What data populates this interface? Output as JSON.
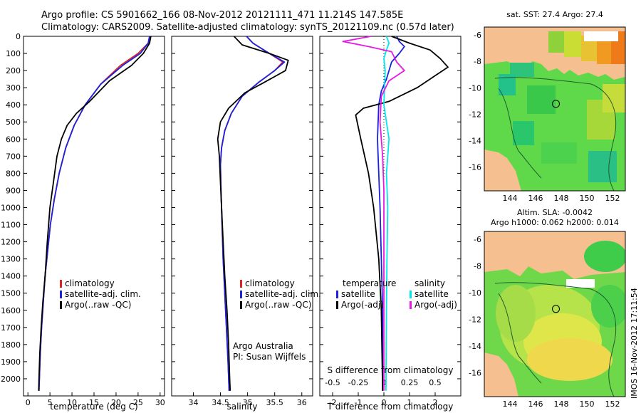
{
  "header": {
    "line1": "Argo profile: CS 5901662_166 08-Nov-2012 20121111_471 11.214S 147.585E",
    "line2": "Climatology: CARS2009. Satellite-adjusted climatology: synTS_20121109.nc (0.57d later)"
  },
  "colors": {
    "clim": "#dd2222",
    "sat": "#1a22dd",
    "argo": "#000000",
    "s_sat": "#00e6ee",
    "s_argo": "#e61ae6",
    "land": "#f5bf90",
    "frame": "#000000"
  },
  "chart_data": [
    {
      "type": "line",
      "id": "temperature",
      "xlabel": "temperature (deg C)",
      "ylabel": "",
      "xlim": [
        -1,
        31
      ],
      "ylim": [
        2100,
        0
      ],
      "xticks": [
        0,
        5,
        10,
        15,
        20,
        25,
        30
      ],
      "xticklabels": [
        "0",
        "5",
        "10",
        "15",
        "20",
        "25",
        "30"
      ],
      "yticks": [
        0,
        100,
        200,
        300,
        400,
        500,
        600,
        700,
        800,
        900,
        1000,
        1100,
        1200,
        1300,
        1400,
        1500,
        1600,
        1700,
        1800,
        1900,
        2000
      ],
      "yticklabels": [
        "0",
        "100",
        "200",
        "300",
        "400",
        "500",
        "600",
        "700",
        "800",
        "900",
        "1000",
        "1100",
        "1200",
        "1300",
        "1400",
        "1500",
        "1600",
        "1700",
        "1800",
        "1900",
        "2000"
      ],
      "legend": [
        "climatology",
        "satellite-adj. clim.",
        "Argo(..raw -QC)"
      ],
      "series": [
        {
          "name": "climatology",
          "color_key": "clim",
          "points": [
            [
              27.6,
              0
            ],
            [
              27.3,
              40
            ],
            [
              25,
              100
            ],
            [
              21,
              170
            ],
            [
              16.5,
              280
            ],
            [
              13,
              400
            ],
            [
              10.5,
              520
            ],
            [
              8.6,
              650
            ],
            [
              7.1,
              800
            ],
            [
              6,
              950
            ],
            [
              5.1,
              1100
            ],
            [
              4.5,
              1250
            ],
            [
              3.9,
              1400
            ],
            [
              3.5,
              1550
            ],
            [
              3.1,
              1700
            ],
            [
              2.8,
              1850
            ],
            [
              2.6,
              2000
            ],
            [
              2.5,
              2070
            ]
          ]
        },
        {
          "name": "satellite-adj. clim.",
          "color_key": "sat",
          "points": [
            [
              27.6,
              0
            ],
            [
              27.3,
              40
            ],
            [
              25.5,
              100
            ],
            [
              21.5,
              170
            ],
            [
              16.5,
              280
            ],
            [
              13,
              400
            ],
            [
              10.5,
              520
            ],
            [
              8.6,
              650
            ],
            [
              7.1,
              800
            ],
            [
              6,
              950
            ],
            [
              5.1,
              1100
            ],
            [
              4.5,
              1250
            ],
            [
              3.9,
              1400
            ],
            [
              3.5,
              1550
            ],
            [
              3.1,
              1700
            ],
            [
              2.8,
              1850
            ],
            [
              2.6,
              2000
            ],
            [
              2.5,
              2070
            ]
          ]
        },
        {
          "name": "Argo(..raw -QC)",
          "color_key": "argo",
          "points": [
            [
              27.9,
              0
            ],
            [
              27.6,
              40
            ],
            [
              26.2,
              100
            ],
            [
              23.5,
              170
            ],
            [
              18.5,
              260
            ],
            [
              14,
              380
            ],
            [
              11,
              450
            ],
            [
              8.9,
              520
            ],
            [
              7.6,
              600
            ],
            [
              6.6,
              700
            ],
            [
              5.8,
              850
            ],
            [
              5,
              1000
            ],
            [
              4.4,
              1200
            ],
            [
              3.9,
              1400
            ],
            [
              3.4,
              1550
            ],
            [
              3,
              1700
            ],
            [
              2.7,
              1850
            ],
            [
              2.5,
              2000
            ],
            [
              2.45,
              2070
            ]
          ]
        }
      ]
    },
    {
      "type": "line",
      "id": "salinity",
      "xlabel": "salinity",
      "ylabel": "",
      "xlim": [
        33.6,
        36.2
      ],
      "ylim": [
        2100,
        0
      ],
      "xticks": [
        34,
        34.5,
        35,
        35.5,
        36
      ],
      "xticklabels": [
        "34",
        "34.5",
        "35",
        "35.5",
        "36"
      ],
      "legend": [
        "climatology",
        "satellite-adj. clim.",
        "Argo(..raw -QC)"
      ],
      "annotation": [
        "Argo Australia",
        "PI: Susan Wijffels"
      ],
      "series": [
        {
          "name": "climatology",
          "color_key": "clim",
          "points": [
            [
              34.98,
              0
            ],
            [
              35.1,
              40
            ],
            [
              35.4,
              100
            ],
            [
              35.65,
              150
            ],
            [
              35.5,
              200
            ],
            [
              35.2,
              270
            ],
            [
              34.9,
              350
            ],
            [
              34.7,
              450
            ],
            [
              34.58,
              550
            ],
            [
              34.52,
              650
            ],
            [
              34.5,
              750
            ],
            [
              34.51,
              900
            ],
            [
              34.53,
              1100
            ],
            [
              34.55,
              1300
            ],
            [
              34.58,
              1500
            ],
            [
              34.61,
              1700
            ],
            [
              34.64,
              1900
            ],
            [
              34.66,
              2070
            ]
          ]
        },
        {
          "name": "satellite-adj. clim.",
          "color_key": "sat",
          "points": [
            [
              34.98,
              0
            ],
            [
              35.1,
              40
            ],
            [
              35.4,
              100
            ],
            [
              35.68,
              150
            ],
            [
              35.5,
              200
            ],
            [
              35.2,
              270
            ],
            [
              34.9,
              350
            ],
            [
              34.7,
              450
            ],
            [
              34.58,
              550
            ],
            [
              34.52,
              650
            ],
            [
              34.5,
              750
            ],
            [
              34.51,
              900
            ],
            [
              34.53,
              1100
            ],
            [
              34.55,
              1300
            ],
            [
              34.58,
              1500
            ],
            [
              34.61,
              1700
            ],
            [
              34.64,
              1900
            ],
            [
              34.66,
              2070
            ]
          ]
        },
        {
          "name": "Argo(..raw -QC)",
          "color_key": "argo",
          "points": [
            [
              34.75,
              0
            ],
            [
              34.9,
              50
            ],
            [
              35.4,
              100
            ],
            [
              35.75,
              140
            ],
            [
              35.7,
              200
            ],
            [
              35.3,
              270
            ],
            [
              34.95,
              330
            ],
            [
              34.65,
              420
            ],
            [
              34.5,
              500
            ],
            [
              34.45,
              600
            ],
            [
              34.48,
              700
            ],
            [
              34.5,
              850
            ],
            [
              34.52,
              1000
            ],
            [
              34.55,
              1200
            ],
            [
              34.58,
              1400
            ],
            [
              34.62,
              1600
            ],
            [
              34.65,
              1800
            ],
            [
              34.67,
              2000
            ],
            [
              34.68,
              2070
            ]
          ]
        }
      ]
    },
    {
      "type": "line",
      "id": "difference",
      "xlabel": "T difference from climatology",
      "xlabel_top": "S difference from climatology",
      "xlim": [
        -2.5,
        3
      ],
      "ylim": [
        2100,
        0
      ],
      "xticks": [
        -2,
        -1,
        0,
        1,
        2
      ],
      "xticklabels": [
        "-2",
        "-1",
        "0",
        "1",
        "2"
      ],
      "sticks": [
        -2,
        -1,
        0,
        1,
        2
      ],
      "sticklabels": [
        "-0.5",
        "-0.25",
        "0",
        "0.25",
        "0.5"
      ],
      "legend_left_title": "temperature",
      "legend_right_title": "salinity",
      "legend_left": [
        "satellite",
        "Argo(-adj)"
      ],
      "legend_right": [
        "satellite",
        "Argo(-adj)"
      ],
      "series": [
        {
          "name": "T satellite",
          "color_key": "sat",
          "points": [
            [
              0.5,
              0
            ],
            [
              0.6,
              30
            ],
            [
              0.8,
              60
            ],
            [
              0.6,
              100
            ],
            [
              0.3,
              150
            ],
            [
              0.1,
              250
            ],
            [
              -0.1,
              320
            ],
            [
              -0.2,
              400
            ],
            [
              -0.25,
              600
            ],
            [
              -0.2,
              800
            ],
            [
              -0.15,
              1000
            ],
            [
              -0.1,
              1300
            ],
            [
              -0.05,
              1600
            ],
            [
              -0.05,
              2070
            ]
          ]
        },
        {
          "name": "T Argo(-adj)",
          "color_key": "argo",
          "points": [
            [
              0.3,
              0
            ],
            [
              1,
              40
            ],
            [
              1.8,
              80
            ],
            [
              2.2,
              130
            ],
            [
              2.5,
              180
            ],
            [
              2,
              230
            ],
            [
              1.3,
              300
            ],
            [
              0.2,
              380
            ],
            [
              -0.8,
              420
            ],
            [
              -1.1,
              460
            ],
            [
              -0.9,
              600
            ],
            [
              -0.6,
              800
            ],
            [
              -0.4,
              1000
            ],
            [
              -0.2,
              1300
            ],
            [
              -0.1,
              1600
            ],
            [
              -0.05,
              2070
            ]
          ]
        },
        {
          "name": "S satellite",
          "color_key": "s_sat",
          "points": [
            [
              0.1,
              0
            ],
            [
              0.2,
              40
            ],
            [
              0.1,
              80
            ],
            [
              0,
              130
            ],
            [
              0.05,
              200
            ],
            [
              0,
              400
            ],
            [
              0.2,
              600
            ],
            [
              0.1,
              800
            ],
            [
              0.15,
              1000
            ],
            [
              0.12,
              1300
            ],
            [
              0.1,
              1600
            ],
            [
              0.08,
              2070
            ]
          ]
        },
        {
          "name": "S Argo(-adj)",
          "color_key": "s_argo",
          "points": [
            [
              -0.5,
              0
            ],
            [
              -1.6,
              30
            ],
            [
              -0.6,
              60
            ],
            [
              0.3,
              90
            ],
            [
              0.5,
              150
            ],
            [
              0.8,
              200
            ],
            [
              0.2,
              260
            ],
            [
              -0.1,
              350
            ],
            [
              -0.15,
              500
            ],
            [
              -0.05,
              700
            ],
            [
              0,
              900
            ],
            [
              0,
              1200
            ],
            [
              0,
              1500
            ],
            [
              0,
              1800
            ],
            [
              0,
              2070
            ]
          ]
        }
      ]
    },
    {
      "type": "heatmap",
      "id": "sst-map",
      "title": "sat. SST: 27.4 Argo: 27.4",
      "xlim": [
        142,
        153
      ],
      "ylim": [
        -17.8,
        -5.4
      ],
      "xticks": [
        144,
        146,
        148,
        150,
        152
      ],
      "xticklabels": [
        "144",
        "146",
        "148",
        "150",
        "152"
      ],
      "yticks": [
        -6,
        -8,
        -10,
        -12,
        -14,
        -16
      ],
      "yticklabels": [
        "-6",
        "-8",
        "-10",
        "-12",
        "-14",
        "-16"
      ],
      "marker": [
        147.585,
        -11.214
      ]
    },
    {
      "type": "heatmap",
      "id": "sla-map",
      "title_line1": "Altim. SLA: -0.0042",
      "title_line2": "Argo h1000: 0.062 h2000: 0.014",
      "xlim": [
        142,
        153
      ],
      "ylim": [
        -17.8,
        -5.4
      ],
      "xticks": [
        144,
        146,
        148,
        150,
        152
      ],
      "xticklabels": [
        "144",
        "146",
        "148",
        "150",
        "152"
      ],
      "yticks": [
        -6,
        -8,
        -10,
        -12,
        -14,
        -16
      ],
      "yticklabels": [
        "-6",
        "-8",
        "-10",
        "-12",
        "-14",
        "-16"
      ],
      "marker": [
        147.585,
        -11.214
      ]
    }
  ],
  "side_label": "IMOS 16-Nov-2012 17:11:54"
}
